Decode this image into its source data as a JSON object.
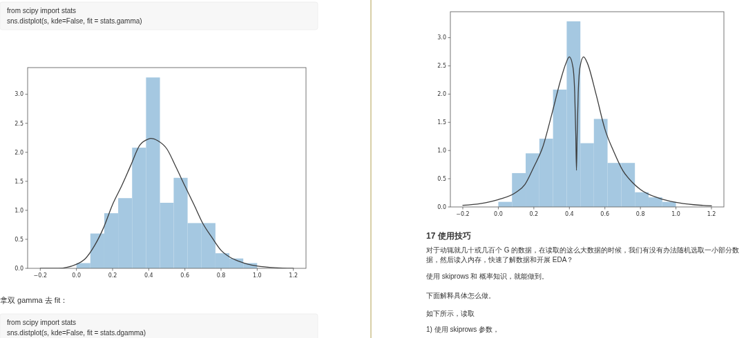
{
  "chart_data": [
    {
      "type": "histogram",
      "bins": [
        0,
        0.077,
        0.154,
        0.231,
        0.308,
        0.385,
        0.462,
        0.538,
        0.615,
        0.692,
        0.769,
        0.846,
        0.923,
        1.0
      ],
      "values": [
        0.09,
        0.6,
        0.95,
        1.21,
        2.08,
        3.29,
        1.13,
        1.56,
        0.78,
        0.78,
        0.26,
        0.17,
        0.09
      ],
      "color": "#a5c8e1",
      "series": [
        {
          "type": "line",
          "color": "#3c3c3c",
          "x": [
            -0.2,
            -0.1,
            0,
            0.05,
            0.1,
            0.15,
            0.2,
            0.25,
            0.3,
            0.35,
            0.4,
            0.41,
            0.45,
            0.5,
            0.55,
            0.6,
            0.65,
            0.7,
            0.75,
            0.8,
            0.85,
            0.9,
            0.95,
            1.0,
            1.1,
            1.2
          ],
          "values": [
            0,
            0,
            0.07,
            0.17,
            0.39,
            0.7,
            1.1,
            1.42,
            1.77,
            2.12,
            2.23,
            2.24,
            2.2,
            2.06,
            1.75,
            1.42,
            1.1,
            0.77,
            0.53,
            0.31,
            0.19,
            0.12,
            0.07,
            0.04,
            0.01,
            0
          ]
        }
      ],
      "xlim": [
        -0.27,
        1.27
      ],
      "ylim": [
        0,
        3.46
      ],
      "xticks": [
        {
          "value": -0.2,
          "label": "−0.2"
        },
        {
          "value": 0,
          "label": "0.0"
        },
        0.2,
        0.4,
        0.6,
        0.8,
        {
          "value": 1,
          "label": "1.0"
        },
        1.2
      ],
      "yticks": [
        {
          "value": 0,
          "label": "0.0"
        },
        0.5,
        {
          "value": 1,
          "label": "1.0"
        },
        1.5,
        {
          "value": 2,
          "label": "2.0"
        },
        2.5,
        {
          "value": 3,
          "label": "3.0"
        }
      ],
      "annotations": [
        "from scipy import stats",
        "sns.distplot(s, kde=False, fit = stats.gamma)",
        "拿双 gamma 去 fit：",
        "from scipy import stats",
        "sns.distplot(s, kde=False, fit = stats.dgamma)"
      ]
    },
    {
      "type": "histogram",
      "bins": [
        0,
        0.077,
        0.154,
        0.231,
        0.308,
        0.385,
        0.462,
        0.538,
        0.615,
        0.692,
        0.769,
        0.846,
        0.923,
        1.0
      ],
      "values": [
        0.09,
        0.6,
        0.95,
        1.21,
        2.08,
        3.29,
        1.13,
        1.56,
        0.78,
        0.78,
        0.26,
        0.17,
        0.09
      ],
      "color": "#a5c8e1",
      "series": [
        {
          "type": "line",
          "color": "#3c3c3c",
          "x": [
            -0.2,
            -0.1,
            0,
            0.1,
            0.15,
            0.2,
            0.25,
            0.3,
            0.35,
            0.38,
            0.4,
            0.42,
            0.43,
            0.436,
            0.44,
            0.444,
            0.45,
            0.46,
            0.48,
            0.5,
            0.55,
            0.6,
            0.65,
            0.7,
            0.75,
            0.8,
            0.9,
            1.0,
            1.1,
            1.2
          ],
          "values": [
            0.03,
            0.06,
            0.13,
            0.26,
            0.4,
            0.71,
            1.06,
            1.63,
            2.24,
            2.54,
            2.66,
            2.48,
            2.03,
            1.3,
            0.65,
            1.3,
            2.03,
            2.48,
            2.66,
            2.56,
            2.0,
            1.38,
            0.98,
            0.65,
            0.45,
            0.31,
            0.16,
            0.08,
            0.04,
            0.02
          ]
        }
      ],
      "xlim": [
        -0.27,
        1.27
      ],
      "ylim": [
        0,
        3.46
      ],
      "xticks": [
        {
          "value": -0.2,
          "label": "−0.2"
        },
        {
          "value": 0,
          "label": "0.0"
        },
        0.2,
        0.4,
        0.6,
        0.8,
        {
          "value": 1,
          "label": "1.0"
        },
        1.2
      ],
      "yticks": [
        {
          "value": 0,
          "label": "0.0"
        },
        0.5,
        {
          "value": 1,
          "label": "1.0"
        },
        1.5,
        {
          "value": 2,
          "label": "2.0"
        },
        2.5,
        {
          "value": 3,
          "label": "3.0"
        }
      ],
      "annotations": [
        "17 使用技巧",
        "对于动辄就几十或几百个 G 的数据，在读取的这么大数据的时候，我们有没有办法随机选取一小部分数据，然后读入内存，快速了解数据和开展 EDA？",
        "使用 skiprows 和 概率知识，就能做到。",
        "下面解释具体怎么做。",
        "如下所示，读取",
        "1) 使用 skiprows 参数，"
      ]
    }
  ]
}
